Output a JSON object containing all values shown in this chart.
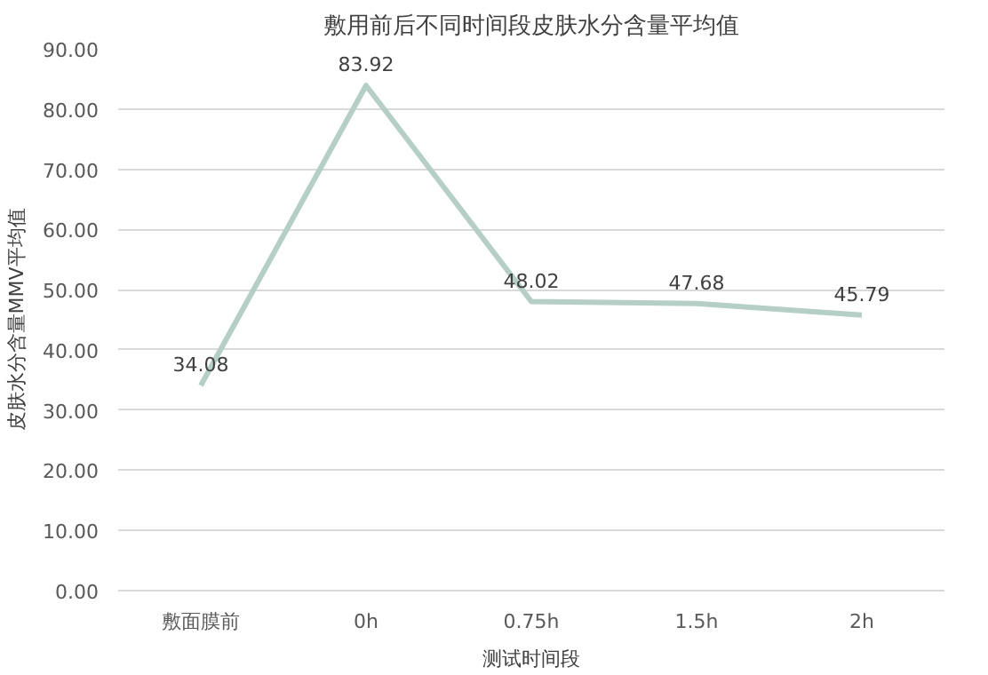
{
  "chart_data": {
    "type": "line",
    "title": "敷用前后不同时间段皮肤水分含量平均值",
    "xlabel": "测试时间段",
    "ylabel": "皮肤水分含量MMV平均值",
    "categories": [
      "敷面膜前",
      "0h",
      "0.75h",
      "1.5h",
      "2h"
    ],
    "series": [
      {
        "color": "#b5cfc7",
        "values": [
          34.08,
          83.92,
          48.02,
          47.68,
          45.79
        ]
      }
    ],
    "ylim": [
      0,
      90
    ],
    "yticks": [
      {
        "value": 0,
        "label": "0.00"
      },
      {
        "value": 10,
        "label": "10.00"
      },
      {
        "value": 20,
        "label": "20.00"
      },
      {
        "value": 30,
        "label": "30.00"
      },
      {
        "value": 40,
        "label": "40.00"
      },
      {
        "value": 50,
        "label": "50.00"
      },
      {
        "value": 60,
        "label": "60.00"
      },
      {
        "value": 70,
        "label": "70.00"
      },
      {
        "value": 80,
        "label": "80.00"
      },
      {
        "value": 90,
        "label": "90.00"
      }
    ],
    "grid": "y",
    "data_labels": true,
    "marker": "none",
    "line_style": "solid"
  }
}
